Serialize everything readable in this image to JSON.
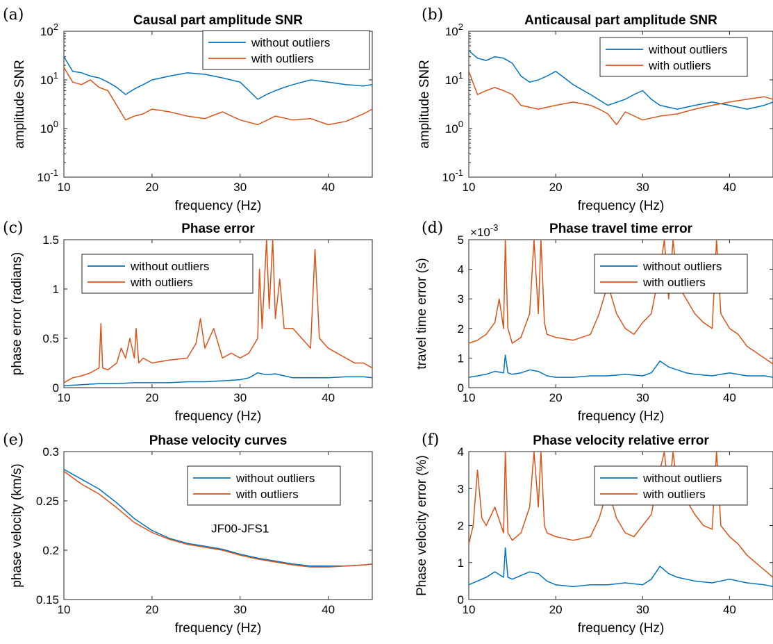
{
  "colors": {
    "without": "#0072BD",
    "with": "#D95319"
  },
  "chart_data": [
    {
      "id": "a",
      "panel_label": "(a)",
      "type": "line",
      "title": "Causal part amplitude SNR",
      "xlabel": "frequency (Hz)",
      "ylabel": "amplitude SNR",
      "xlim": [
        10,
        45
      ],
      "ylim": [
        0.1,
        100
      ],
      "yscale": "log",
      "xticks": [
        "10",
        "20",
        "30",
        "40"
      ],
      "yticks": [
        "10^-1",
        "10^0",
        "10^1",
        "10^2"
      ],
      "legend_placement": "top-right",
      "series": [
        {
          "name": "without outliers",
          "color": "without",
          "x": [
            10,
            11,
            12,
            13,
            14,
            15,
            16,
            17,
            18,
            19,
            20,
            22,
            24,
            26,
            28,
            30,
            31,
            32,
            33,
            34,
            35,
            36,
            38,
            40,
            42,
            44,
            45
          ],
          "y": [
            30,
            15,
            14,
            12,
            11,
            9,
            7,
            5,
            6.5,
            8,
            10,
            12,
            14,
            13,
            11,
            9,
            6,
            4,
            5,
            6,
            7,
            8,
            10,
            9,
            8,
            7.5,
            8
          ]
        },
        {
          "name": "with outliers",
          "color": "with",
          "x": [
            10,
            11,
            12,
            13,
            14,
            15,
            16,
            17,
            18,
            19,
            20,
            22,
            24,
            26,
            28,
            30,
            32,
            34,
            36,
            38,
            40,
            42,
            44,
            45
          ],
          "y": [
            18,
            9,
            8,
            10,
            7,
            6,
            3,
            1.5,
            1.8,
            2,
            2.5,
            2.2,
            1.8,
            1.6,
            2.2,
            1.5,
            1.2,
            1.8,
            1.5,
            1.6,
            1.2,
            1.4,
            2,
            2.5
          ]
        }
      ]
    },
    {
      "id": "b",
      "panel_label": "(b)",
      "type": "line",
      "title": "Anticausal part amplitude SNR",
      "xlabel": "frequency (Hz)",
      "ylabel": "amplitude SNR",
      "xlim": [
        10,
        45
      ],
      "ylim": [
        0.1,
        100
      ],
      "yscale": "log",
      "xticks": [
        "10",
        "20",
        "30",
        "40"
      ],
      "yticks": [
        "10^-1",
        "10^0",
        "10^1",
        "10^2"
      ],
      "legend_placement": "top-right",
      "series": [
        {
          "name": "without outliers",
          "color": "without",
          "x": [
            10,
            11,
            12,
            13,
            14,
            15,
            16,
            17,
            18,
            19,
            20,
            21,
            22,
            24,
            26,
            28,
            29,
            30,
            31,
            32,
            34,
            36,
            38,
            40,
            42,
            44,
            45
          ],
          "y": [
            40,
            28,
            25,
            30,
            28,
            22,
            12,
            9,
            10,
            12,
            15,
            11,
            8,
            5,
            3,
            4,
            5,
            6,
            4,
            3,
            2.5,
            3,
            3.5,
            3,
            2.5,
            3,
            3.5
          ]
        },
        {
          "name": "with outliers",
          "color": "with",
          "x": [
            10,
            11,
            12,
            13,
            14,
            15,
            16,
            18,
            20,
            22,
            24,
            25,
            26,
            27,
            28,
            30,
            32,
            34,
            36,
            38,
            40,
            42,
            44,
            45
          ],
          "y": [
            15,
            5,
            6,
            7,
            6,
            5,
            3,
            2.5,
            3,
            3.5,
            3,
            2.5,
            2,
            1.2,
            2.2,
            1.5,
            1.8,
            2,
            2.5,
            3,
            3.5,
            4,
            4.5,
            4
          ]
        }
      ]
    },
    {
      "id": "c",
      "panel_label": "(c)",
      "type": "line",
      "title": "Phase error",
      "xlabel": "frequency (Hz)",
      "ylabel": "phase error (radians)",
      "xlim": [
        10,
        45
      ],
      "ylim": [
        0,
        1.5
      ],
      "yscale": "linear",
      "xticks": [
        "10",
        "20",
        "30",
        "40"
      ],
      "yticks": [
        "0",
        "0.5",
        "1",
        "1.5"
      ],
      "legend_placement": "top-left",
      "series": [
        {
          "name": "without outliers",
          "color": "without",
          "x": [
            10,
            12,
            14,
            16,
            18,
            20,
            22,
            24,
            26,
            28,
            30,
            31,
            32,
            33,
            34,
            35,
            36,
            38,
            40,
            42,
            44,
            45
          ],
          "y": [
            0.02,
            0.03,
            0.04,
            0.04,
            0.05,
            0.05,
            0.05,
            0.06,
            0.06,
            0.07,
            0.08,
            0.1,
            0.15,
            0.13,
            0.14,
            0.12,
            0.1,
            0.1,
            0.1,
            0.11,
            0.11,
            0.1
          ]
        },
        {
          "name": "with outliers",
          "color": "with",
          "x": [
            10,
            11,
            12,
            13,
            14,
            14.2,
            14.4,
            15,
            16,
            16.5,
            17,
            17.5,
            18,
            18.2,
            18.5,
            19,
            20,
            22,
            24,
            25,
            25.5,
            26,
            27,
            28,
            29,
            30,
            31,
            32,
            32.2,
            32.5,
            33,
            33.3,
            33.7,
            34,
            34.5,
            35,
            36,
            37,
            38,
            38.5,
            39,
            40,
            41,
            42,
            43,
            44,
            45
          ],
          "y": [
            0.05,
            0.1,
            0.12,
            0.15,
            0.2,
            0.65,
            0.2,
            0.18,
            0.25,
            0.4,
            0.3,
            0.5,
            0.3,
            0.6,
            0.25,
            0.3,
            0.25,
            0.28,
            0.3,
            0.45,
            0.7,
            0.4,
            0.6,
            0.3,
            0.35,
            0.3,
            0.35,
            0.5,
            1.2,
            0.6,
            1.5,
            0.8,
            1.5,
            0.7,
            1.1,
            0.6,
            0.6,
            0.5,
            0.4,
            1.4,
            0.5,
            0.4,
            0.35,
            0.3,
            0.25,
            0.25,
            0.2
          ]
        }
      ]
    },
    {
      "id": "d",
      "panel_label": "(d)",
      "type": "line",
      "title": "Phase travel time error",
      "axis_multiplier": "×10^-3",
      "xlabel": "frequency (Hz)",
      "ylabel": "travel time error (s)",
      "xlim": [
        10,
        45
      ],
      "ylim": [
        0,
        5
      ],
      "yscale": "linear",
      "xticks": [
        "10",
        "20",
        "30",
        "40"
      ],
      "yticks": [
        "0",
        "1",
        "2",
        "3",
        "4",
        "5"
      ],
      "legend_placement": "top-right",
      "series": [
        {
          "name": "without outliers",
          "color": "without",
          "x": [
            10,
            11,
            12,
            13,
            14,
            14.2,
            14.5,
            15,
            16,
            17,
            18,
            19,
            20,
            22,
            24,
            26,
            28,
            30,
            31,
            32,
            33,
            34,
            35,
            36,
            38,
            40,
            42,
            44,
            45
          ],
          "y": [
            0.35,
            0.4,
            0.45,
            0.55,
            0.5,
            1.1,
            0.5,
            0.45,
            0.5,
            0.6,
            0.55,
            0.4,
            0.35,
            0.35,
            0.4,
            0.4,
            0.45,
            0.4,
            0.5,
            0.9,
            0.7,
            0.6,
            0.5,
            0.45,
            0.4,
            0.5,
            0.4,
            0.4,
            0.35
          ]
        },
        {
          "name": "with outliers",
          "color": "with",
          "x": [
            10,
            11,
            12,
            13,
            13.5,
            14,
            14.2,
            14.5,
            15,
            16,
            17,
            17.5,
            18,
            18.3,
            18.7,
            19,
            20,
            22,
            24,
            25,
            26,
            27,
            28,
            29,
            30,
            31,
            32,
            32.5,
            33,
            33.5,
            34,
            35,
            36,
            37,
            38,
            38.5,
            39,
            40,
            41,
            42,
            43,
            44,
            45
          ],
          "y": [
            1.5,
            1.6,
            1.8,
            2.2,
            3,
            2,
            5,
            2,
            1.5,
            1.7,
            2.5,
            5,
            2.5,
            5,
            2.2,
            1.8,
            1.7,
            1.6,
            1.8,
            2.5,
            3.5,
            2.5,
            2,
            1.8,
            2.2,
            2.5,
            4,
            5,
            3,
            5,
            3.5,
            3,
            2.5,
            2.2,
            2,
            5,
            2.5,
            2,
            1.8,
            1.4,
            1.2,
            1,
            0.8
          ]
        }
      ]
    },
    {
      "id": "e",
      "panel_label": "(e)",
      "type": "line",
      "title": "Phase velocity curves",
      "annotation": "JF00-JFS1",
      "xlabel": "frequency (Hz)",
      "ylabel": "phase velocity (km/s)",
      "xlim": [
        10,
        45
      ],
      "ylim": [
        0.15,
        0.3
      ],
      "yscale": "linear",
      "xticks": [
        "10",
        "20",
        "30",
        "40"
      ],
      "yticks": [
        "0.15",
        "0.2",
        "0.25",
        "0.3"
      ],
      "legend_placement": "top-right",
      "series": [
        {
          "name": "without outliers",
          "color": "without",
          "x": [
            10,
            12,
            14,
            16,
            18,
            20,
            22,
            24,
            26,
            28,
            30,
            32,
            34,
            36,
            38,
            40,
            42,
            44,
            45
          ],
          "y": [
            0.282,
            0.272,
            0.262,
            0.248,
            0.232,
            0.22,
            0.212,
            0.207,
            0.204,
            0.201,
            0.196,
            0.192,
            0.189,
            0.186,
            0.184,
            0.184,
            0.184,
            0.185,
            0.186
          ]
        },
        {
          "name": "with outliers",
          "color": "with",
          "x": [
            10,
            12,
            14,
            16,
            18,
            20,
            22,
            24,
            26,
            28,
            30,
            32,
            34,
            36,
            38,
            40,
            42,
            44,
            45
          ],
          "y": [
            0.28,
            0.267,
            0.257,
            0.243,
            0.228,
            0.218,
            0.211,
            0.206,
            0.203,
            0.2,
            0.195,
            0.191,
            0.188,
            0.185,
            0.183,
            0.183,
            0.184,
            0.185,
            0.186
          ]
        }
      ]
    },
    {
      "id": "f",
      "panel_label": "(f)",
      "type": "line",
      "title": "Phase velocity relative error",
      "xlabel": "frequency (Hz)",
      "ylabel": "Phase velocity error (%)",
      "xlim": [
        10,
        45
      ],
      "ylim": [
        0,
        4
      ],
      "yscale": "linear",
      "xticks": [
        "10",
        "20",
        "30",
        "40"
      ],
      "yticks": [
        "0",
        "1",
        "2",
        "3",
        "4"
      ],
      "legend_placement": "top-right",
      "series": [
        {
          "name": "without outliers",
          "color": "without",
          "x": [
            10,
            11,
            12,
            13,
            14,
            14.2,
            14.5,
            15,
            16,
            17,
            18,
            19,
            20,
            22,
            24,
            26,
            28,
            30,
            31,
            32,
            33,
            34,
            35,
            36,
            38,
            40,
            42,
            44,
            45
          ],
          "y": [
            0.4,
            0.5,
            0.6,
            0.75,
            0.6,
            1.4,
            0.6,
            0.55,
            0.65,
            0.75,
            0.7,
            0.5,
            0.4,
            0.35,
            0.4,
            0.4,
            0.45,
            0.4,
            0.55,
            0.9,
            0.7,
            0.6,
            0.55,
            0.5,
            0.45,
            0.55,
            0.45,
            0.4,
            0.35
          ]
        },
        {
          "name": "with outliers",
          "color": "with",
          "x": [
            10,
            10.5,
            11,
            11.5,
            12,
            13,
            14,
            14.2,
            14.5,
            15,
            16,
            17,
            17.5,
            18,
            18.3,
            18.7,
            19,
            20,
            22,
            24,
            25,
            26,
            27,
            28,
            29,
            30,
            31,
            32,
            32.5,
            33,
            33.5,
            34,
            35,
            36,
            37,
            38,
            38.5,
            39,
            40,
            41,
            42,
            43,
            44,
            45
          ],
          "y": [
            1.5,
            2,
            3.5,
            2.2,
            2,
            2.5,
            1.8,
            4,
            1.8,
            1.6,
            1.8,
            2.5,
            4,
            2.5,
            4,
            2,
            1.8,
            1.7,
            1.6,
            1.7,
            2.2,
            3,
            2.2,
            1.8,
            1.7,
            2,
            2.3,
            3.5,
            4,
            2.8,
            4,
            3,
            2.7,
            2.3,
            2,
            1.9,
            4,
            2,
            1.7,
            1.5,
            1.2,
            1,
            0.8,
            0.6
          ]
        }
      ]
    }
  ]
}
